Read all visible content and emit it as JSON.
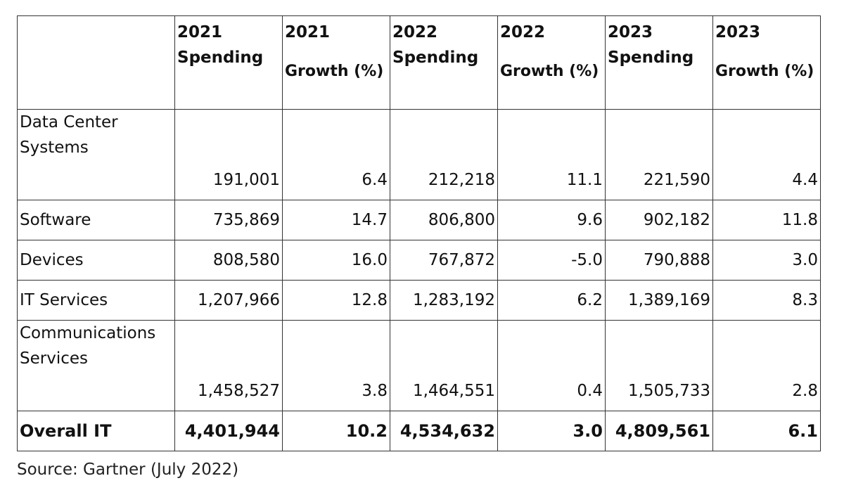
{
  "table": {
    "headers": [
      {
        "year": "",
        "label": ""
      },
      {
        "year": "2021",
        "label": "Spending"
      },
      {
        "year": "2021",
        "label": "Growth (%)"
      },
      {
        "year": "2022",
        "label": "Spending"
      },
      {
        "year": "2022",
        "label": "Growth (%)"
      },
      {
        "year": "2023",
        "label": "Spending"
      },
      {
        "year": "2023",
        "label": "Growth (%)"
      }
    ],
    "rows": [
      {
        "segment": "Data Center Systems",
        "values": [
          "191,001",
          "6.4",
          "212,218",
          "11.1",
          "221,590",
          "4.4"
        ]
      },
      {
        "segment": "Software",
        "values": [
          "735,869",
          "14.7",
          "806,800",
          "9.6",
          "902,182",
          "11.8"
        ]
      },
      {
        "segment": "Devices",
        "values": [
          "808,580",
          "16.0",
          "767,872",
          "-5.0",
          "790,888",
          "3.0"
        ]
      },
      {
        "segment": "IT Services",
        "values": [
          "1,207,966",
          "12.8",
          "1,283,192",
          "6.2",
          "1,389,169",
          "8.3"
        ]
      },
      {
        "segment": "Communications Services",
        "values": [
          "1,458,527",
          "3.8",
          "1,464,551",
          "0.4",
          "1,505,733",
          "2.8"
        ]
      }
    ],
    "total": {
      "segment": "Overall IT",
      "values": [
        "4,401,944",
        "10.2",
        "4,534,632",
        "3.0",
        "4,809,561",
        "6.1"
      ]
    }
  },
  "source": "Source: Gartner (July 2022)"
}
